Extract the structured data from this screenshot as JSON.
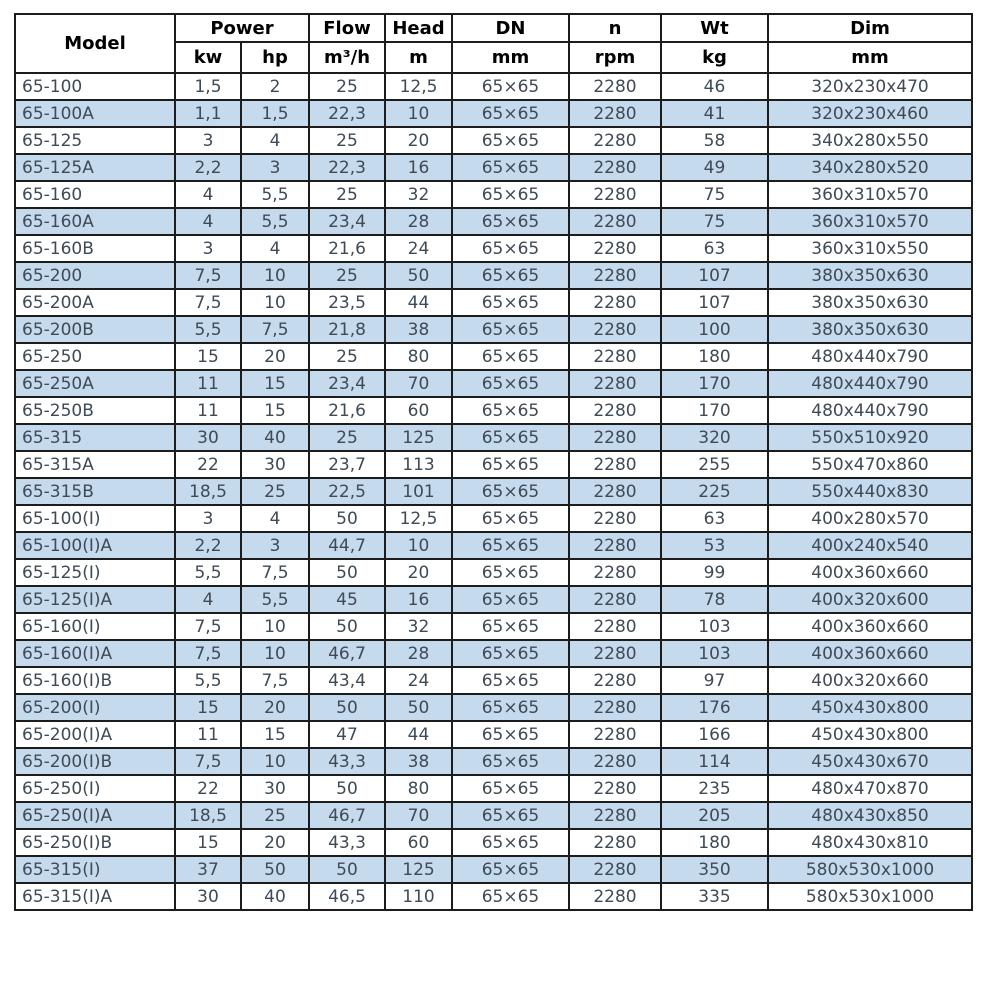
{
  "colors": {
    "alt_row": "#c6daee",
    "border": "#1c1c1c",
    "data_text": "#3e4a56",
    "header_text": "#000000"
  },
  "table": {
    "header": {
      "model": "Model",
      "power": "Power",
      "power_kw": "kw",
      "power_hp": "hp",
      "flow": "Flow",
      "flow_unit": "m³/h",
      "head": "Head",
      "head_unit": "m",
      "dn": "DN",
      "dn_unit": "mm",
      "n": "n",
      "n_unit": "rpm",
      "wt": "Wt",
      "wt_unit": "kg",
      "dim": "Dim",
      "dim_unit": "mm"
    },
    "rows": [
      [
        "65-100",
        "1,5",
        "2",
        "25",
        "12,5",
        "65×65",
        "2280",
        "46",
        "320x230x470"
      ],
      [
        "65-100A",
        "1,1",
        "1,5",
        "22,3",
        "10",
        "65×65",
        "2280",
        "41",
        "320x230x460"
      ],
      [
        "65-125",
        "3",
        "4",
        "25",
        "20",
        "65×65",
        "2280",
        "58",
        "340x280x550"
      ],
      [
        "65-125A",
        "2,2",
        "3",
        "22,3",
        "16",
        "65×65",
        "2280",
        "49",
        "340x280x520"
      ],
      [
        "65-160",
        "4",
        "5,5",
        "25",
        "32",
        "65×65",
        "2280",
        "75",
        "360x310x570"
      ],
      [
        "65-160A",
        "4",
        "5,5",
        "23,4",
        "28",
        "65×65",
        "2280",
        "75",
        "360x310x570"
      ],
      [
        "65-160B",
        "3",
        "4",
        "21,6",
        "24",
        "65×65",
        "2280",
        "63",
        "360x310x550"
      ],
      [
        "65-200",
        "7,5",
        "10",
        "25",
        "50",
        "65×65",
        "2280",
        "107",
        "380x350x630"
      ],
      [
        "65-200A",
        "7,5",
        "10",
        "23,5",
        "44",
        "65×65",
        "2280",
        "107",
        "380x350x630"
      ],
      [
        "65-200B",
        "5,5",
        "7,5",
        "21,8",
        "38",
        "65×65",
        "2280",
        "100",
        "380x350x630"
      ],
      [
        "65-250",
        "15",
        "20",
        "25",
        "80",
        "65×65",
        "2280",
        "180",
        "480x440x790"
      ],
      [
        "65-250A",
        "11",
        "15",
        "23,4",
        "70",
        "65×65",
        "2280",
        "170",
        "480x440x790"
      ],
      [
        "65-250B",
        "11",
        "15",
        "21,6",
        "60",
        "65×65",
        "2280",
        "170",
        "480x440x790"
      ],
      [
        "65-315",
        "30",
        "40",
        "25",
        "125",
        "65×65",
        "2280",
        "320",
        "550x510x920"
      ],
      [
        "65-315A",
        "22",
        "30",
        "23,7",
        "113",
        "65×65",
        "2280",
        "255",
        "550x470x860"
      ],
      [
        "65-315B",
        "18,5",
        "25",
        "22,5",
        "101",
        "65×65",
        "2280",
        "225",
        "550x440x830"
      ],
      [
        "65-100(I)",
        "3",
        "4",
        "50",
        "12,5",
        "65×65",
        "2280",
        "63",
        "400x280x570"
      ],
      [
        "65-100(I)A",
        "2,2",
        "3",
        "44,7",
        "10",
        "65×65",
        "2280",
        "53",
        "400x240x540"
      ],
      [
        "65-125(I)",
        "5,5",
        "7,5",
        "50",
        "20",
        "65×65",
        "2280",
        "99",
        "400x360x660"
      ],
      [
        "65-125(I)A",
        "4",
        "5,5",
        "45",
        "16",
        "65×65",
        "2280",
        "78",
        "400x320x600"
      ],
      [
        "65-160(I)",
        "7,5",
        "10",
        "50",
        "32",
        "65×65",
        "2280",
        "103",
        "400x360x660"
      ],
      [
        "65-160(I)A",
        "7,5",
        "10",
        "46,7",
        "28",
        "65×65",
        "2280",
        "103",
        "400x360x660"
      ],
      [
        "65-160(I)B",
        "5,5",
        "7,5",
        "43,4",
        "24",
        "65×65",
        "2280",
        "97",
        "400x320x660"
      ],
      [
        "65-200(I)",
        "15",
        "20",
        "50",
        "50",
        "65×65",
        "2280",
        "176",
        "450x430x800"
      ],
      [
        "65-200(I)A",
        "11",
        "15",
        "47",
        "44",
        "65×65",
        "2280",
        "166",
        "450x430x800"
      ],
      [
        "65-200(I)B",
        "7,5",
        "10",
        "43,3",
        "38",
        "65×65",
        "2280",
        "114",
        "450x430x670"
      ],
      [
        "65-250(I)",
        "22",
        "30",
        "50",
        "80",
        "65×65",
        "2280",
        "235",
        "480x470x870"
      ],
      [
        "65-250(I)A",
        "18,5",
        "25",
        "46,7",
        "70",
        "65×65",
        "2280",
        "205",
        "480x430x850"
      ],
      [
        "65-250(I)B",
        "15",
        "20",
        "43,3",
        "60",
        "65×65",
        "2280",
        "180",
        "480x430x810"
      ],
      [
        "65-315(I)",
        "37",
        "50",
        "50",
        "125",
        "65×65",
        "2280",
        "350",
        "580x530x1000"
      ],
      [
        "65-315(I)A",
        "30",
        "40",
        "46,5",
        "110",
        "65×65",
        "2280",
        "335",
        "580x530x1000"
      ]
    ]
  }
}
